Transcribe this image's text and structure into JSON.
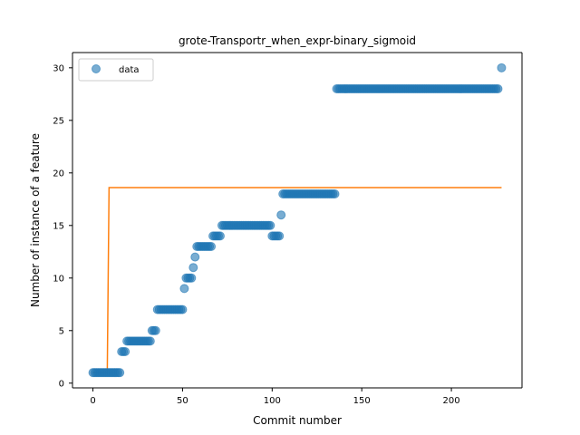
{
  "chart_data": {
    "type": "scatter",
    "title": "grote-Transportr_when_expr-binary_sigmoid",
    "xlabel": "Commit number",
    "ylabel": "Number of instance of a feature",
    "xlim": [
      -11.4,
      239.4
    ],
    "ylim": [
      -0.45,
      31.45
    ],
    "xticks": [
      0,
      50,
      100,
      150,
      200
    ],
    "yticks": [
      0,
      5,
      10,
      15,
      20,
      25,
      30
    ],
    "legend": {
      "placement": "upper-left",
      "entries": [
        "data"
      ]
    },
    "colors": {
      "points": "#1f77b4",
      "fit": "#ff7f0e"
    },
    "series": [
      {
        "name": "data",
        "kind": "scatter",
        "runs": [
          {
            "x0": 0,
            "x1": 15,
            "y": 1
          },
          {
            "x0": 16,
            "x1": 18,
            "y": 3
          },
          {
            "x0": 19,
            "x1": 32,
            "y": 4
          },
          {
            "x0": 33,
            "x1": 35,
            "y": 5
          },
          {
            "x0": 36,
            "x1": 50,
            "y": 7
          },
          {
            "x0": 51,
            "x1": 51,
            "y": 9
          },
          {
            "x0": 52,
            "x1": 55,
            "y": 10
          },
          {
            "x0": 56,
            "x1": 56,
            "y": 11
          },
          {
            "x0": 57,
            "x1": 57,
            "y": 12
          },
          {
            "x0": 58,
            "x1": 66,
            "y": 13
          },
          {
            "x0": 67,
            "x1": 71,
            "y": 14
          },
          {
            "x0": 72,
            "x1": 99,
            "y": 15
          },
          {
            "x0": 100,
            "x1": 104,
            "y": 14
          },
          {
            "x0": 105,
            "x1": 105,
            "y": 16
          },
          {
            "x0": 106,
            "x1": 135,
            "y": 18
          },
          {
            "x0": 136,
            "x1": 226,
            "y": 28
          },
          {
            "x0": 228,
            "x1": 228,
            "y": 30
          }
        ]
      },
      {
        "name": "",
        "kind": "line",
        "points": [
          [
            0,
            1.0
          ],
          [
            8,
            1.0
          ],
          [
            9,
            18.6
          ],
          [
            228,
            18.6
          ]
        ]
      }
    ]
  }
}
